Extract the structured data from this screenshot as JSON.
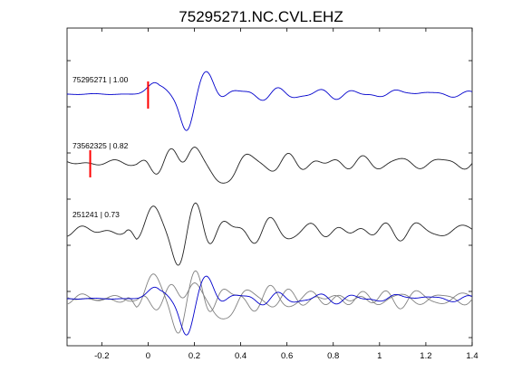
{
  "chart_data": {
    "type": "line",
    "title": "75295271.NC.CVL.EHZ",
    "xlabel": "",
    "ylabel": "",
    "xlim": [
      -0.35,
      1.4
    ],
    "x_ticks": [
      -0.2,
      0,
      0.2,
      0.4,
      0.6,
      0.8,
      1,
      1.2,
      1.4
    ],
    "x_tick_labels": [
      "-0.2",
      "0",
      "0.2",
      "0.4",
      "0.6",
      "0.8",
      "1",
      "1.2",
      "1.4"
    ],
    "y_ticks_count": 7,
    "grid": false,
    "colors": {
      "master": "#0000cc",
      "match": "#222222",
      "overlay": "#808080",
      "pick": "#ff0000"
    },
    "traces": [
      {
        "label": "75295271 | 1.00",
        "color": "#0000cc",
        "pick_time": 0.0,
        "offset": 0
      },
      {
        "label": "73562325 | 0.82",
        "color": "#222222",
        "pick_time": -0.25,
        "offset": 1
      },
      {
        "label": "251241 | 0.73",
        "color": "#222222",
        "pick_time": null,
        "offset": 2
      }
    ],
    "overlay": {
      "offset": 3,
      "series": [
        "master",
        "73562325",
        "251241"
      ]
    }
  }
}
